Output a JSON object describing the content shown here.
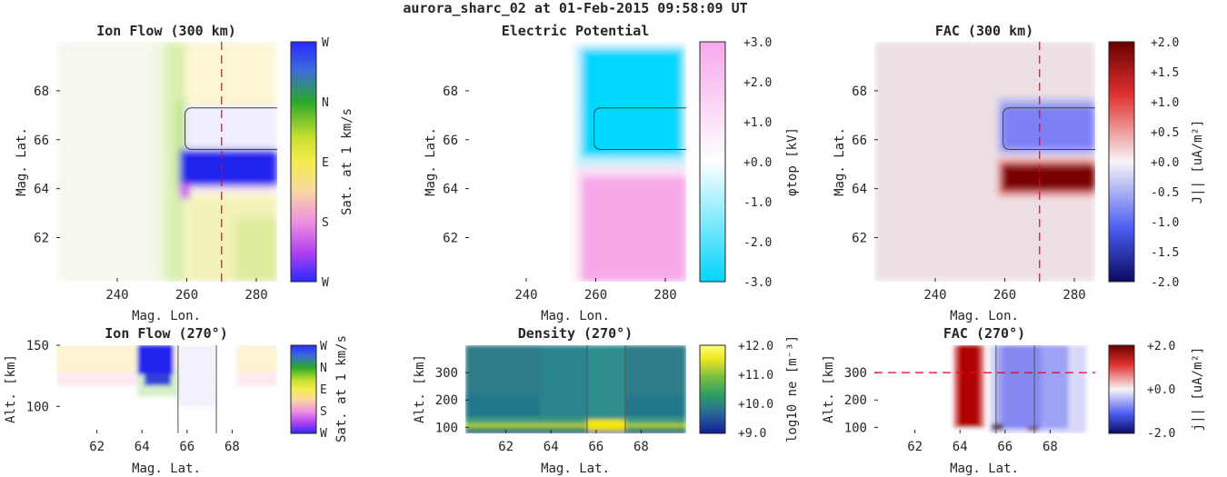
{
  "figure_title": "aurora_sharc_02 at 01-Feb-2015 09:58:09 UT",
  "colors": {
    "red_dashed": "#e8001a",
    "curve": "#404040",
    "axis_text": "#262626"
  },
  "chart_data": [
    {
      "id": "ion-flow-300",
      "type": "heatmap",
      "title": "Ion Flow (300 km)",
      "xlabel": "Mag. Lon.",
      "ylabel": "Mag. Lat.",
      "xlim": [
        222.5,
        286
      ],
      "ylim": [
        60.2,
        70
      ],
      "xticks": [
        240,
        260,
        280
      ],
      "yticks": [
        62,
        64,
        66,
        68
      ],
      "colorbar": {
        "label": "Sat. at 1 km/s",
        "ticks": [
          "W",
          "N",
          "E",
          "S",
          "W"
        ],
        "colormap": "hue-circular"
      },
      "vline": 270,
      "region": {
        "lon": [
          259.5,
          286
        ],
        "lat": [
          65.6,
          67.3
        ]
      },
      "cells": [
        {
          "lon": [
            222.5,
            250
          ],
          "lat": [
            60.2,
            70
          ],
          "color": "#f6f8f0"
        },
        {
          "lon": [
            250,
            255.5
          ],
          "lat": [
            60.2,
            70
          ],
          "color": "#eef7dc"
        },
        {
          "lon": [
            254,
            259.5
          ],
          "lat": [
            60.2,
            70
          ],
          "color": "#d9f0b0"
        },
        {
          "lon": [
            257,
            261.5
          ],
          "lat": [
            64,
            67.6
          ],
          "color": "#c0e48c"
        },
        {
          "lon": [
            259.5,
            286
          ],
          "lat": [
            60.2,
            70
          ],
          "color": "#fbf6c8"
        },
        {
          "lon": [
            261,
            286
          ],
          "lat": [
            60.2,
            63.6
          ],
          "color": "#f3f2b8"
        },
        {
          "lon": [
            274,
            286
          ],
          "lat": [
            60.2,
            62.8
          ],
          "color": "#dcec9c"
        },
        {
          "lon": [
            261,
            286
          ],
          "lat": [
            67.7,
            70
          ],
          "color": "#fdf7d8"
        },
        {
          "lon": [
            259.5,
            286
          ],
          "lat": [
            65.6,
            67.4
          ],
          "color": "#f1efff"
        },
        {
          "lon": [
            262,
            286
          ],
          "lat": [
            63.8,
            64.6
          ],
          "color": "#fce8f4"
        },
        {
          "lon": [
            258,
            286
          ],
          "lat": [
            64.1,
            65.6
          ],
          "color": "#2222ee"
        },
        {
          "lon": [
            258,
            261
          ],
          "lat": [
            63.6,
            64.2
          ],
          "color": "#d060f0"
        }
      ]
    },
    {
      "id": "electric-potential",
      "type": "heatmap",
      "title": "Electric Potential",
      "xlabel": "Mag. Lon.",
      "ylabel": "Mag. Lat.",
      "xlim": [
        222.5,
        286
      ],
      "ylim": [
        60.2,
        70
      ],
      "xticks": [
        240,
        260,
        280
      ],
      "yticks": [
        62,
        64,
        66,
        68
      ],
      "colorbar": {
        "label": "φtop [kV]",
        "ticks": [
          "+3.0",
          "+2.0",
          "+1.0",
          "+0.0",
          "-1.0",
          "-2.0",
          "-3.0"
        ],
        "range": [
          -3.0,
          3.0
        ]
      },
      "region": {
        "lon": [
          259.5,
          286
        ],
        "lat": [
          65.6,
          67.3
        ]
      },
      "cells": [
        {
          "lon": [
            222.5,
            286
          ],
          "lat": [
            60.2,
            70
          ],
          "color": "#ffffff"
        },
        {
          "lon": [
            254,
            286
          ],
          "lat": [
            64.9,
            69.9
          ],
          "color": "#c8f0fb"
        },
        {
          "lon": [
            256,
            285
          ],
          "lat": [
            65.3,
            69.7
          ],
          "color": "#00d8ff"
        },
        {
          "lon": [
            254,
            286
          ],
          "lat": [
            60.2,
            64.9
          ],
          "color": "#fbe0f4"
        },
        {
          "lon": [
            256,
            286
          ],
          "lat": [
            60.2,
            64.5
          ],
          "color": "#f6a8e8"
        }
      ]
    },
    {
      "id": "fac-300",
      "type": "heatmap",
      "title": "FAC (300 km)",
      "xlabel": "Mag. Lon.",
      "ylabel": "Mag. Lat.",
      "xlim": [
        222.5,
        286
      ],
      "ylim": [
        60.2,
        70
      ],
      "xticks": [
        240,
        260,
        280
      ],
      "yticks": [
        62,
        64,
        66,
        68
      ],
      "colorbar": {
        "label": "J|| [uA/m²]",
        "ticks": [
          "+2.0",
          "+1.5",
          "+1.0",
          "+0.5",
          "+0.0",
          "-0.5",
          "-1.0",
          "-1.5",
          "-2.0"
        ],
        "range": [
          -2.0,
          2.0
        ]
      },
      "vline": 270,
      "region": {
        "lon": [
          259.5,
          286
        ],
        "lat": [
          65.6,
          67.3
        ]
      },
      "cells": [
        {
          "lon": [
            222.5,
            286
          ],
          "lat": [
            60.2,
            70
          ],
          "color": "#ede0e4"
        },
        {
          "lon": [
            258,
            286
          ],
          "lat": [
            65.4,
            67.7
          ],
          "color": "#b8b8f0"
        },
        {
          "lon": [
            259,
            286
          ],
          "lat": [
            65.6,
            67.4
          ],
          "color": "#7c80f4"
        },
        {
          "lon": [
            258,
            286
          ],
          "lat": [
            63.7,
            65.2
          ],
          "color": "#f08080"
        },
        {
          "lon": [
            259,
            286
          ],
          "lat": [
            63.9,
            65.0
          ],
          "color": "#7a0000"
        }
      ]
    },
    {
      "id": "ion-flow-270",
      "type": "heatmap",
      "title": "Ion Flow (270°)",
      "xlabel": "Mag. Lat.",
      "ylabel": "Alt. [km]",
      "xlim": [
        60.2,
        70
      ],
      "ylim": [
        78,
        150
      ],
      "xticks": [
        62,
        64,
        66,
        68
      ],
      "yticks": [
        100,
        150
      ],
      "colorbar": {
        "label": "Sat. at 1 km/s",
        "ticks": [
          "W",
          "N",
          "E",
          "S",
          "W"
        ],
        "colormap": "hue-circular"
      },
      "boundaries": [
        65.6,
        67.3
      ],
      "cells": [
        {
          "lon": [
            60.2,
            70
          ],
          "lat": [
            78,
            150
          ],
          "color": "#ffffff"
        },
        {
          "lon": [
            60.2,
            70
          ],
          "lat": [
            128,
            150
          ],
          "color": "#fbf3d2"
        },
        {
          "lon": [
            60.2,
            70
          ],
          "lat": [
            117,
            128
          ],
          "color": "#fde8ee"
        },
        {
          "lon": [
            63.8,
            65.8
          ],
          "lat": [
            108,
            128
          ],
          "color": "#d6f0c8"
        },
        {
          "lon": [
            63.8,
            65.4
          ],
          "lat": [
            126,
            150
          ],
          "color": "#2222ee"
        },
        {
          "lon": [
            64.1,
            65.3
          ],
          "lat": [
            117,
            127
          ],
          "color": "#3040d8"
        },
        {
          "lon": [
            65.6,
            67.3
          ],
          "lat": [
            100,
            150
          ],
          "color": "#f2f0fc"
        },
        {
          "lon": [
            67.3,
            68.2
          ],
          "lat": [
            78,
            150
          ],
          "color": "#ffffff"
        }
      ]
    },
    {
      "id": "density-270",
      "type": "heatmap",
      "title": "Density (270°)",
      "xlabel": "Mag. Lat.",
      "ylabel": "Alt. [km]",
      "xlim": [
        60.2,
        70
      ],
      "ylim": [
        78,
        400
      ],
      "xticks": [
        62,
        64,
        66,
        68
      ],
      "yticks": [
        100,
        200,
        300
      ],
      "colorbar": {
        "label": "log10 ne [m⁻³]",
        "ticks": [
          "+12.0",
          "+11.0",
          "+10.0",
          "+9.0"
        ],
        "range": [
          9.0,
          12.0
        ]
      },
      "boundaries": [
        65.6,
        67.3
      ],
      "cells": [
        {
          "lon": [
            60.2,
            70
          ],
          "lat": [
            78,
            400
          ],
          "color": "#2e7d8c"
        },
        {
          "lon": [
            60.2,
            70
          ],
          "lat": [
            220,
            400
          ],
          "color": "#2f7c8a"
        },
        {
          "lon": [
            60.2,
            70
          ],
          "lat": [
            140,
            220
          ],
          "color": "#23778c"
        },
        {
          "lon": [
            63.5,
            65.6
          ],
          "lat": [
            120,
            400
          ],
          "color": "#2a848e"
        },
        {
          "lon": [
            65.6,
            67.3
          ],
          "lat": [
            120,
            400
          ],
          "color": "#2d8e8e"
        },
        {
          "lon": [
            60.2,
            70
          ],
          "lat": [
            112,
            135
          ],
          "color": "#3e9e78"
        },
        {
          "lon": [
            60.2,
            70
          ],
          "lat": [
            100,
            112
          ],
          "color": "#c8d82a"
        },
        {
          "lon": [
            60.2,
            70
          ],
          "lat": [
            88,
            100
          ],
          "color": "#2b9c4a"
        },
        {
          "lon": [
            60.2,
            70
          ],
          "lat": [
            78,
            88
          ],
          "color": "#102090"
        },
        {
          "lon": [
            65.6,
            67.3
          ],
          "lat": [
            95,
            128
          ],
          "color": "#f5e800"
        },
        {
          "lon": [
            65.6,
            67.3
          ],
          "lat": [
            88,
            96
          ],
          "color": "#e6df10"
        }
      ]
    },
    {
      "id": "fac-270",
      "type": "heatmap",
      "title": "FAC (270°)",
      "xlabel": "Mag. Lat.",
      "ylabel": "Alt. [km]",
      "xlim": [
        60.2,
        70
      ],
      "ylim": [
        78,
        400
      ],
      "xticks": [
        62,
        64,
        66,
        68
      ],
      "yticks": [
        100,
        200,
        300
      ],
      "colorbar": {
        "label": "j|| [uA/m²]",
        "ticks": [
          "+2.0",
          "+0.0",
          "-2.0"
        ],
        "range": [
          -2.0,
          2.0
        ]
      },
      "hline": 300,
      "boundaries": [
        65.6,
        67.3
      ],
      "cells": [
        {
          "lon": [
            60.2,
            70
          ],
          "lat": [
            78,
            400
          ],
          "color": "#ffffff"
        },
        {
          "lon": [
            65.3,
            69.6
          ],
          "lat": [
            78,
            400
          ],
          "color": "#d8d8f8"
        },
        {
          "lon": [
            65.6,
            68.8
          ],
          "lat": [
            95,
            400
          ],
          "color": "#9ea2f4"
        },
        {
          "lon": [
            65.9,
            67.6
          ],
          "lat": [
            95,
            400
          ],
          "color": "#8488f0"
        },
        {
          "lon": [
            63.7,
            65.1
          ],
          "lat": [
            98,
            400
          ],
          "color": "#e07070"
        },
        {
          "lon": [
            63.9,
            64.9
          ],
          "lat": [
            100,
            400
          ],
          "color": "#b00000"
        },
        {
          "lon": [
            65.4,
            65.9
          ],
          "lat": [
            90,
            112
          ],
          "color": "#5a0000"
        },
        {
          "lon": [
            67.0,
            67.5
          ],
          "lat": [
            88,
            100
          ],
          "color": "#6a1010"
        }
      ]
    }
  ]
}
